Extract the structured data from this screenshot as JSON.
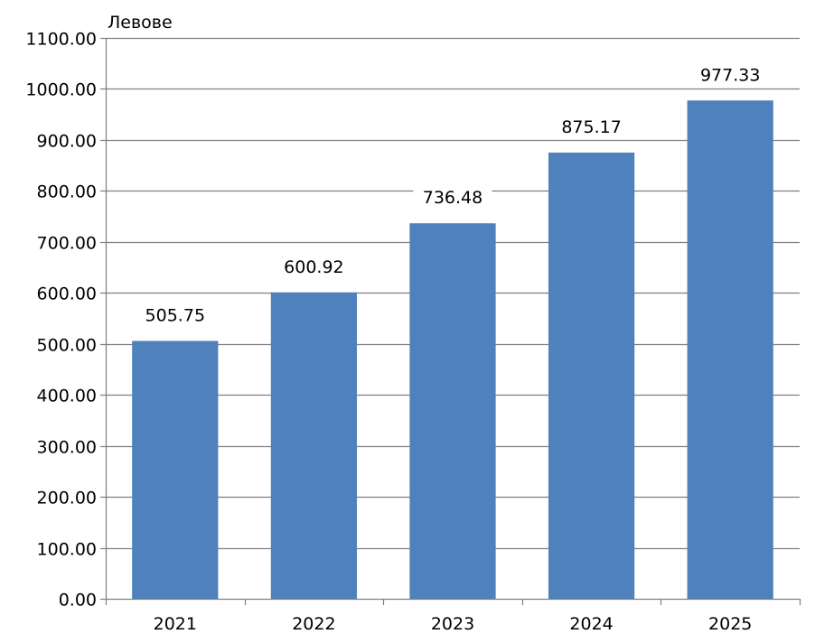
{
  "chart_data": {
    "type": "bar",
    "unit_label": "Левове",
    "categories": [
      "2021",
      "2022",
      "2023",
      "2024",
      "2025"
    ],
    "values": [
      505.75,
      600.92,
      736.48,
      875.17,
      977.33
    ],
    "value_labels": [
      "505.75",
      "600.92",
      "736.48",
      "875.17",
      "977.33"
    ],
    "y_ticks": [
      "0.00",
      "100.00",
      "200.00",
      "300.00",
      "400.00",
      "500.00",
      "600.00",
      "700.00",
      "800.00",
      "900.00",
      "1000.00",
      "1100.00"
    ],
    "ylim": [
      0,
      1100
    ],
    "grid": "horizontal",
    "bar_color": "#4f81bd",
    "grid_color": "#7f7f7f",
    "axis_color": "#7f7f7f"
  }
}
